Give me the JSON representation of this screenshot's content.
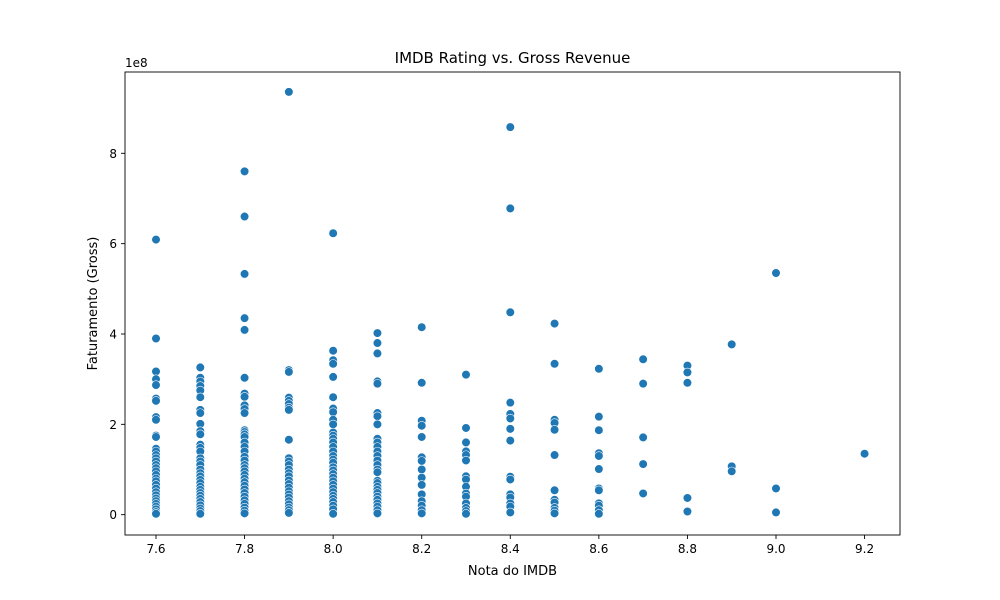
{
  "chart_data": {
    "type": "scatter",
    "title": "IMDB Rating vs. Gross Revenue",
    "xlabel": "Nota do IMDB",
    "ylabel": "Faturamento (Gross)",
    "y_offset_label": "1e8",
    "xlim": [
      7.53,
      9.28
    ],
    "ylim": [
      -45000000,
      980000000
    ],
    "xticks": [
      7.6,
      7.8,
      8.0,
      8.2,
      8.4,
      8.6,
      8.8,
      9.0,
      9.2
    ],
    "xtick_labels": [
      "7.6",
      "7.8",
      "8.0",
      "8.2",
      "8.4",
      "8.6",
      "8.8",
      "9.0",
      "9.2"
    ],
    "yticks": [
      0,
      200000000,
      400000000,
      600000000,
      800000000
    ],
    "ytick_labels": [
      "0",
      "2",
      "4",
      "6",
      "8"
    ],
    "grid": false,
    "marker_color": "#1f77b4",
    "series": [
      {
        "points": [
          [
            7.6,
            609000000
          ],
          [
            7.6,
            390000000
          ],
          [
            7.6,
            317000000
          ],
          [
            7.6,
            300000000
          ],
          [
            7.6,
            287000000
          ],
          [
            7.6,
            257000000
          ],
          [
            7.6,
            252000000
          ],
          [
            7.6,
            216000000
          ],
          [
            7.6,
            210000000
          ],
          [
            7.6,
            175000000
          ],
          [
            7.6,
            172000000
          ],
          [
            7.6,
            146000000
          ],
          [
            7.6,
            140000000
          ],
          [
            7.6,
            132000000
          ],
          [
            7.6,
            125000000
          ],
          [
            7.6,
            118000000
          ],
          [
            7.6,
            110000000
          ],
          [
            7.6,
            103000000
          ],
          [
            7.6,
            96000000
          ],
          [
            7.6,
            88000000
          ],
          [
            7.6,
            80000000
          ],
          [
            7.6,
            74000000
          ],
          [
            7.6,
            66000000
          ],
          [
            7.6,
            58000000
          ],
          [
            7.6,
            50000000
          ],
          [
            7.6,
            43000000
          ],
          [
            7.6,
            36000000
          ],
          [
            7.6,
            30000000
          ],
          [
            7.6,
            24000000
          ],
          [
            7.6,
            18000000
          ],
          [
            7.6,
            12000000
          ],
          [
            7.6,
            6000000
          ],
          [
            7.6,
            2000000
          ],
          [
            7.7,
            326000000
          ],
          [
            7.7,
            303000000
          ],
          [
            7.7,
            295000000
          ],
          [
            7.7,
            285000000
          ],
          [
            7.7,
            275000000
          ],
          [
            7.7,
            260000000
          ],
          [
            7.7,
            232000000
          ],
          [
            7.7,
            225000000
          ],
          [
            7.7,
            201000000
          ],
          [
            7.7,
            185000000
          ],
          [
            7.7,
            178000000
          ],
          [
            7.7,
            155000000
          ],
          [
            7.7,
            148000000
          ],
          [
            7.7,
            140000000
          ],
          [
            7.7,
            125000000
          ],
          [
            7.7,
            118000000
          ],
          [
            7.7,
            110000000
          ],
          [
            7.7,
            100000000
          ],
          [
            7.7,
            92000000
          ],
          [
            7.7,
            85000000
          ],
          [
            7.7,
            77000000
          ],
          [
            7.7,
            70000000
          ],
          [
            7.7,
            62000000
          ],
          [
            7.7,
            55000000
          ],
          [
            7.7,
            48000000
          ],
          [
            7.7,
            42000000
          ],
          [
            7.7,
            35000000
          ],
          [
            7.7,
            28000000
          ],
          [
            7.7,
            21000000
          ],
          [
            7.7,
            14000000
          ],
          [
            7.7,
            8000000
          ],
          [
            7.7,
            2000000
          ],
          [
            7.8,
            760000000
          ],
          [
            7.8,
            660000000
          ],
          [
            7.8,
            533000000
          ],
          [
            7.8,
            435000000
          ],
          [
            7.8,
            409000000
          ],
          [
            7.8,
            303000000
          ],
          [
            7.8,
            268000000
          ],
          [
            7.8,
            261000000
          ],
          [
            7.8,
            242000000
          ],
          [
            7.8,
            234000000
          ],
          [
            7.8,
            225000000
          ],
          [
            7.8,
            187000000
          ],
          [
            7.8,
            183000000
          ],
          [
            7.8,
            178000000
          ],
          [
            7.8,
            172000000
          ],
          [
            7.8,
            160000000
          ],
          [
            7.8,
            150000000
          ],
          [
            7.8,
            140000000
          ],
          [
            7.8,
            128000000
          ],
          [
            7.8,
            120000000
          ],
          [
            7.8,
            110000000
          ],
          [
            7.8,
            103000000
          ],
          [
            7.8,
            96000000
          ],
          [
            7.8,
            88000000
          ],
          [
            7.8,
            80000000
          ],
          [
            7.8,
            72000000
          ],
          [
            7.8,
            64000000
          ],
          [
            7.8,
            56000000
          ],
          [
            7.8,
            48000000
          ],
          [
            7.8,
            40000000
          ],
          [
            7.8,
            32000000
          ],
          [
            7.8,
            24000000
          ],
          [
            7.8,
            16000000
          ],
          [
            7.8,
            9000000
          ],
          [
            7.8,
            3000000
          ],
          [
            7.9,
            936000000
          ],
          [
            7.9,
            320000000
          ],
          [
            7.9,
            316000000
          ],
          [
            7.9,
            259000000
          ],
          [
            7.9,
            252000000
          ],
          [
            7.9,
            245000000
          ],
          [
            7.9,
            237000000
          ],
          [
            7.9,
            232000000
          ],
          [
            7.9,
            166000000
          ],
          [
            7.9,
            125000000
          ],
          [
            7.9,
            118000000
          ],
          [
            7.9,
            110000000
          ],
          [
            7.9,
            100000000
          ],
          [
            7.9,
            92000000
          ],
          [
            7.9,
            85000000
          ],
          [
            7.9,
            76000000
          ],
          [
            7.9,
            68000000
          ],
          [
            7.9,
            60000000
          ],
          [
            7.9,
            52000000
          ],
          [
            7.9,
            45000000
          ],
          [
            7.9,
            38000000
          ],
          [
            7.9,
            30000000
          ],
          [
            7.9,
            23000000
          ],
          [
            7.9,
            16000000
          ],
          [
            7.9,
            10000000
          ],
          [
            7.9,
            4000000
          ],
          [
            8.0,
            623000000
          ],
          [
            8.0,
            363000000
          ],
          [
            8.0,
            342000000
          ],
          [
            8.0,
            334000000
          ],
          [
            8.0,
            305000000
          ],
          [
            8.0,
            260000000
          ],
          [
            8.0,
            235000000
          ],
          [
            8.0,
            227000000
          ],
          [
            8.0,
            210000000
          ],
          [
            8.0,
            200000000
          ],
          [
            8.0,
            182000000
          ],
          [
            8.0,
            175000000
          ],
          [
            8.0,
            168000000
          ],
          [
            8.0,
            160000000
          ],
          [
            8.0,
            150000000
          ],
          [
            8.0,
            140000000
          ],
          [
            8.0,
            130000000
          ],
          [
            8.0,
            122000000
          ],
          [
            8.0,
            115000000
          ],
          [
            8.0,
            105000000
          ],
          [
            8.0,
            98000000
          ],
          [
            8.0,
            90000000
          ],
          [
            8.0,
            82000000
          ],
          [
            8.0,
            74000000
          ],
          [
            8.0,
            66000000
          ],
          [
            8.0,
            58000000
          ],
          [
            8.0,
            50000000
          ],
          [
            8.0,
            42000000
          ],
          [
            8.0,
            35000000
          ],
          [
            8.0,
            28000000
          ],
          [
            8.0,
            20000000
          ],
          [
            8.0,
            12000000
          ],
          [
            8.0,
            2000000
          ],
          [
            8.1,
            402000000
          ],
          [
            8.1,
            380000000
          ],
          [
            8.1,
            357000000
          ],
          [
            8.1,
            295000000
          ],
          [
            8.1,
            290000000
          ],
          [
            8.1,
            225000000
          ],
          [
            8.1,
            218000000
          ],
          [
            8.1,
            200000000
          ],
          [
            8.1,
            168000000
          ],
          [
            8.1,
            160000000
          ],
          [
            8.1,
            150000000
          ],
          [
            8.1,
            140000000
          ],
          [
            8.1,
            130000000
          ],
          [
            8.1,
            120000000
          ],
          [
            8.1,
            110000000
          ],
          [
            8.1,
            100000000
          ],
          [
            8.1,
            94000000
          ],
          [
            8.1,
            75000000
          ],
          [
            8.1,
            70000000
          ],
          [
            8.1,
            62000000
          ],
          [
            8.1,
            55000000
          ],
          [
            8.1,
            48000000
          ],
          [
            8.1,
            40000000
          ],
          [
            8.1,
            33000000
          ],
          [
            8.1,
            25000000
          ],
          [
            8.1,
            18000000
          ],
          [
            8.1,
            10000000
          ],
          [
            8.1,
            3000000
          ],
          [
            8.2,
            415000000
          ],
          [
            8.2,
            292000000
          ],
          [
            8.2,
            208000000
          ],
          [
            8.2,
            197000000
          ],
          [
            8.2,
            172000000
          ],
          [
            8.2,
            127000000
          ],
          [
            8.2,
            119000000
          ],
          [
            8.2,
            100000000
          ],
          [
            8.2,
            82000000
          ],
          [
            8.2,
            66000000
          ],
          [
            8.2,
            45000000
          ],
          [
            8.2,
            30000000
          ],
          [
            8.2,
            20000000
          ],
          [
            8.2,
            10000000
          ],
          [
            8.2,
            3000000
          ],
          [
            8.3,
            310000000
          ],
          [
            8.3,
            192000000
          ],
          [
            8.3,
            160000000
          ],
          [
            8.3,
            140000000
          ],
          [
            8.3,
            132000000
          ],
          [
            8.3,
            120000000
          ],
          [
            8.3,
            85000000
          ],
          [
            8.3,
            78000000
          ],
          [
            8.3,
            62000000
          ],
          [
            8.3,
            47000000
          ],
          [
            8.3,
            40000000
          ],
          [
            8.3,
            25000000
          ],
          [
            8.3,
            15000000
          ],
          [
            8.3,
            8000000
          ],
          [
            8.3,
            2000000
          ],
          [
            8.4,
            858000000
          ],
          [
            8.4,
            678000000
          ],
          [
            8.4,
            448000000
          ],
          [
            8.4,
            248000000
          ],
          [
            8.4,
            223000000
          ],
          [
            8.4,
            213000000
          ],
          [
            8.4,
            190000000
          ],
          [
            8.4,
            164000000
          ],
          [
            8.4,
            84000000
          ],
          [
            8.4,
            78000000
          ],
          [
            8.4,
            45000000
          ],
          [
            8.4,
            38000000
          ],
          [
            8.4,
            25000000
          ],
          [
            8.4,
            18000000
          ],
          [
            8.4,
            5000000
          ],
          [
            8.5,
            423000000
          ],
          [
            8.5,
            334000000
          ],
          [
            8.5,
            210000000
          ],
          [
            8.5,
            203000000
          ],
          [
            8.5,
            188000000
          ],
          [
            8.5,
            132000000
          ],
          [
            8.5,
            54000000
          ],
          [
            8.5,
            33000000
          ],
          [
            8.5,
            27000000
          ],
          [
            8.5,
            15000000
          ],
          [
            8.5,
            9000000
          ],
          [
            8.5,
            3000000
          ],
          [
            8.6,
            323000000
          ],
          [
            8.6,
            217000000
          ],
          [
            8.6,
            187000000
          ],
          [
            8.6,
            136000000
          ],
          [
            8.6,
            130000000
          ],
          [
            8.6,
            101000000
          ],
          [
            8.6,
            58000000
          ],
          [
            8.6,
            54000000
          ],
          [
            8.6,
            25000000
          ],
          [
            8.6,
            20000000
          ],
          [
            8.6,
            10000000
          ],
          [
            8.6,
            2000000
          ],
          [
            8.7,
            344000000
          ],
          [
            8.7,
            290000000
          ],
          [
            8.7,
            171000000
          ],
          [
            8.7,
            112000000
          ],
          [
            8.7,
            47000000
          ],
          [
            8.8,
            330000000
          ],
          [
            8.8,
            315000000
          ],
          [
            8.8,
            292000000
          ],
          [
            8.8,
            37000000
          ],
          [
            8.8,
            7000000
          ],
          [
            8.9,
            377000000
          ],
          [
            8.9,
            107000000
          ],
          [
            8.9,
            96000000
          ],
          [
            9.0,
            535000000
          ],
          [
            9.0,
            58000000
          ],
          [
            9.0,
            5000000
          ],
          [
            9.2,
            135000000
          ]
        ]
      }
    ]
  }
}
